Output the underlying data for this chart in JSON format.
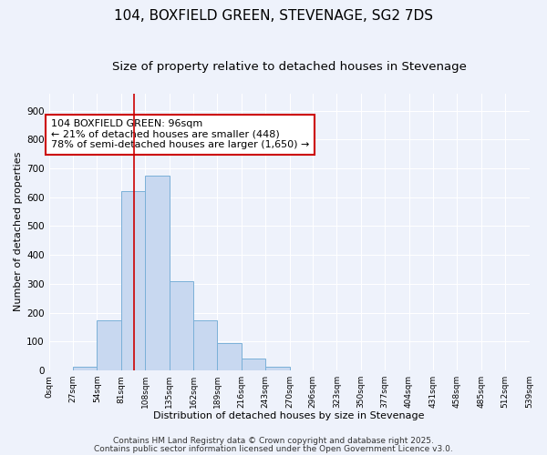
{
  "title": "104, BOXFIELD GREEN, STEVENAGE, SG2 7DS",
  "subtitle": "Size of property relative to detached houses in Stevenage",
  "xlabel": "Distribution of detached houses by size in Stevenage",
  "ylabel": "Number of detached properties",
  "bin_edges": [
    0,
    27,
    54,
    81,
    108,
    135,
    162,
    189,
    216,
    243,
    270,
    296,
    323,
    350,
    377,
    404,
    431,
    458,
    485,
    512,
    539
  ],
  "bin_labels": [
    "0sqm",
    "27sqm",
    "54sqm",
    "81sqm",
    "108sqm",
    "135sqm",
    "162sqm",
    "189sqm",
    "216sqm",
    "243sqm",
    "270sqm",
    "296sqm",
    "323sqm",
    "350sqm",
    "377sqm",
    "404sqm",
    "431sqm",
    "458sqm",
    "485sqm",
    "512sqm",
    "539sqm"
  ],
  "counts": [
    0,
    12,
    175,
    620,
    675,
    310,
    175,
    95,
    40,
    12,
    0,
    0,
    0,
    0,
    0,
    0,
    0,
    0,
    0,
    0
  ],
  "bar_color": "#c8d8f0",
  "bar_edge_color": "#7ab0d8",
  "property_line_x": 96,
  "property_line_color": "#cc0000",
  "ylim": [
    0,
    960
  ],
  "yticks": [
    0,
    100,
    200,
    300,
    400,
    500,
    600,
    700,
    800,
    900
  ],
  "annotation_text": "104 BOXFIELD GREEN: 96sqm\n← 21% of detached houses are smaller (448)\n78% of semi-detached houses are larger (1,650) →",
  "annotation_box_color": "#ffffff",
  "annotation_border_color": "#cc0000",
  "footer_line1": "Contains HM Land Registry data © Crown copyright and database right 2025.",
  "footer_line2": "Contains public sector information licensed under the Open Government Licence v3.0.",
  "background_color": "#eef2fb",
  "grid_color": "#ffffff",
  "title_fontsize": 11,
  "subtitle_fontsize": 9.5,
  "annotation_fontsize": 8,
  "footer_fontsize": 6.5
}
